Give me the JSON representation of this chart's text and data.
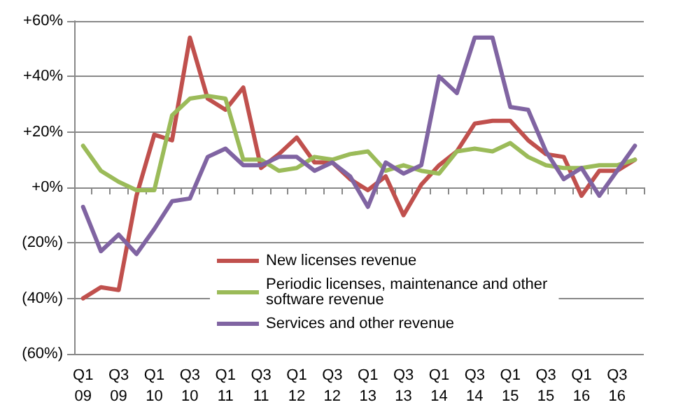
{
  "chart_data": {
    "type": "line",
    "categories": [
      "Q1 09",
      null,
      "Q3 09",
      null,
      "Q1 10",
      null,
      "Q3 10",
      null,
      "Q1 11",
      null,
      "Q3 11",
      null,
      "Q1 12",
      null,
      "Q3 12",
      null,
      "Q1 13",
      null,
      "Q3 13",
      null,
      "Q1 14",
      null,
      "Q3 14",
      null,
      "Q1 15",
      null,
      "Q3 15",
      null,
      "Q1 16",
      null,
      "Q3 16",
      null
    ],
    "series": [
      {
        "name": "New licenses revenue",
        "color": "#c0504d",
        "values": [
          -40,
          -36,
          -37,
          -3,
          19,
          17,
          54,
          32,
          28,
          36,
          7,
          12,
          18,
          9,
          9,
          3,
          -1,
          4,
          -10,
          1,
          8,
          13,
          23,
          24,
          24,
          17,
          12,
          11,
          -3,
          6,
          6,
          10
        ]
      },
      {
        "name": "Periodic licenses, maintenance and other software revenue",
        "color": "#9bbb59",
        "values": [
          15,
          6,
          2,
          -1,
          -1,
          26,
          32,
          33,
          32,
          10,
          10,
          6,
          7,
          11,
          10,
          12,
          13,
          6,
          8,
          6,
          5,
          13,
          14,
          13,
          16,
          11,
          8,
          7,
          7,
          8,
          8,
          10
        ]
      },
      {
        "name": "Services and other revenue",
        "color": "#8064a2",
        "values": [
          -7,
          -23,
          -17,
          -24,
          -15,
          -5,
          -4,
          11,
          14,
          8,
          8,
          11,
          11,
          6,
          9,
          4,
          -7,
          9,
          5,
          8,
          40,
          34,
          54,
          54,
          29,
          28,
          13,
          3,
          7,
          -3,
          6,
          15
        ]
      }
    ],
    "ylim": [
      -60,
      60
    ],
    "yticks": [
      {
        "value": -60,
        "label": "(60%)"
      },
      {
        "value": -40,
        "label": "(40%)"
      },
      {
        "value": -20,
        "label": "(20%)"
      },
      {
        "value": 0,
        "label": "+0%"
      },
      {
        "value": 20,
        "label": "+20%"
      },
      {
        "value": 40,
        "label": "+40%"
      },
      {
        "value": 60,
        "label": "+60%"
      }
    ],
    "grid": "y",
    "legend": "bottom",
    "marker": "none",
    "line_style": "solid"
  }
}
